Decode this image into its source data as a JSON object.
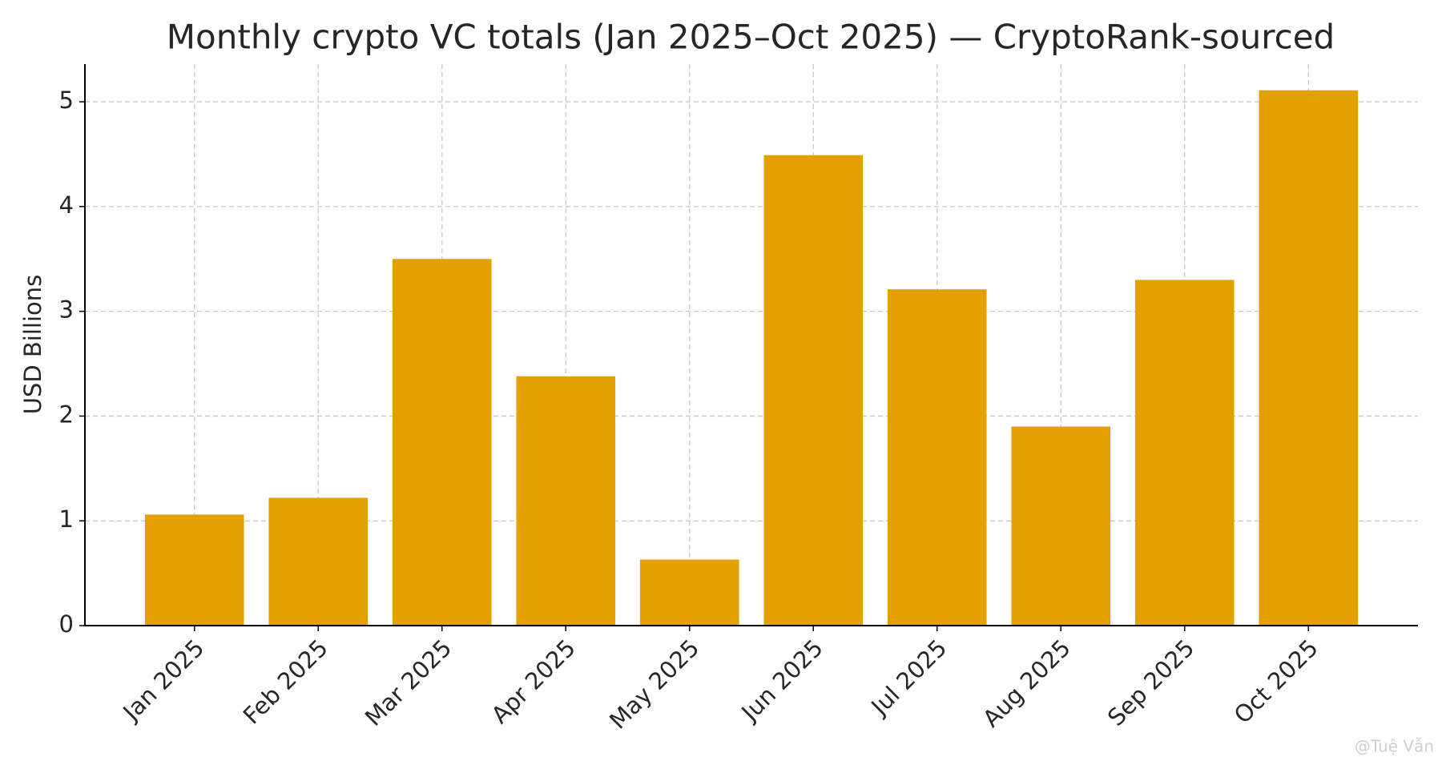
{
  "chart_data": {
    "type": "bar",
    "title": "Monthly crypto VC totals (Jan 2025–Oct 2025) — CryptoRank-sourced",
    "y_label": "USD Billions",
    "categories": [
      "Jan 2025",
      "Feb 2025",
      "Mar 2025",
      "Apr 2025",
      "May 2025",
      "Jun 2025",
      "Jul 2025",
      "Aug 2025",
      "Sep 2025",
      "Oct 2025"
    ],
    "values": [
      1.06,
      1.22,
      3.5,
      2.38,
      0.63,
      4.49,
      3.21,
      1.9,
      3.3,
      5.11
    ],
    "color": "#e3a000",
    "ylim": [
      0,
      5.36
    ],
    "yticks": [
      0,
      1,
      2,
      3,
      4,
      5
    ],
    "grid": true,
    "watermark": "@Tuệ Vẫn"
  }
}
